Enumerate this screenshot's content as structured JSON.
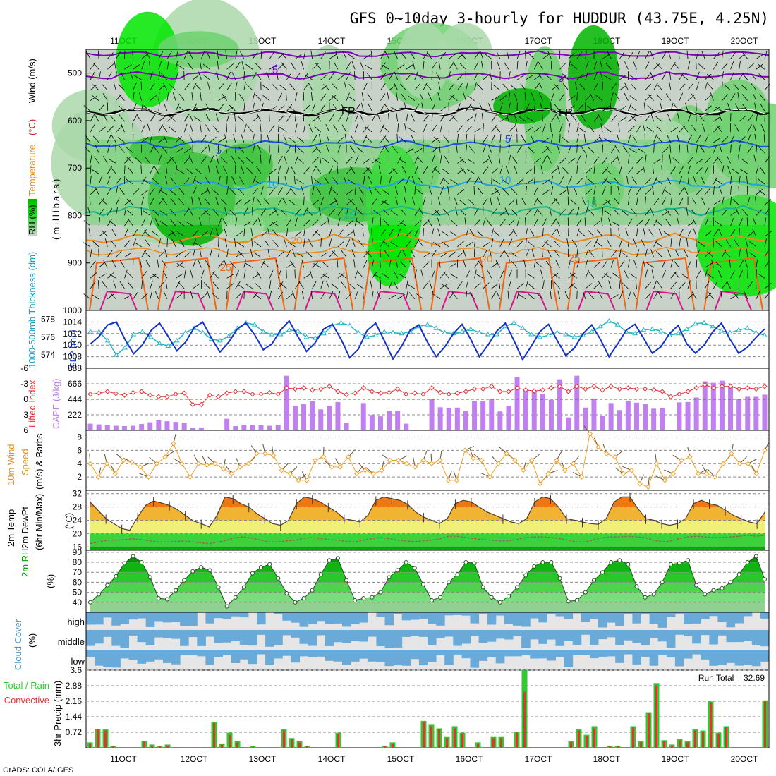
{
  "title": "GFS 0~10day 3-hourly for HUDDUR (43.75E, 4.25N)",
  "credit": "GrADS: COLA/IGES",
  "dates": [
    "11OCT",
    "12OCT",
    "13OCT",
    "14OCT",
    "15OCT",
    "16OCT",
    "17OCT",
    "18OCT",
    "19OCT",
    "20OCT"
  ],
  "colors": {
    "green_dark": "#00b400",
    "green_bright": "#00e600",
    "green_mid": "#6ed26e",
    "green_light": "#aad8aa",
    "gray": "#c8d2c8",
    "purple": "#8000c0",
    "blue": "#1e50dc",
    "cyan": "#1ea0e6",
    "teal": "#14b48c",
    "orange": "#e68c1e",
    "darkorange": "#f06414",
    "magenta": "#dc148c",
    "cape": "#c080f0",
    "li": "#e63232",
    "slp": "#1432c8",
    "thick": "#28b4c8",
    "wind10": "#f0a028",
    "cloud": "#6aaad8",
    "precip_total": "#32c832",
    "precip_conv": "#e63232"
  },
  "chart_data": [
    {
      "type": "heatmap",
      "ylabel_parts": [
        "RH (%)",
        "Temperature",
        "(°C)",
        "Wind (m/s)"
      ],
      "ylabel2": "(millibars)",
      "yticks": [
        "500",
        "600",
        "700",
        "800",
        "900",
        "1000"
      ],
      "contour_labels": [
        "5",
        "5",
        "FR",
        "FR",
        "5",
        "5",
        "10",
        "10",
        "15",
        "15",
        "20",
        "20",
        "25",
        "25"
      ]
    },
    {
      "type": "line",
      "ylabel_left": "1000-500mb Thickness (dm)",
      "ylabel_right": "SLP (mb)",
      "yticks_left": [
        "578",
        "576",
        "574"
      ],
      "yticks_right": [
        "1014",
        "1012",
        "1010",
        "1008"
      ],
      "series": [
        {
          "name": "SLP",
          "values": [
            1010.2,
            1011.5,
            1013.5,
            1014.0,
            1011.0,
            1008.5,
            1010.0,
            1012.5,
            1013.8,
            1011.5,
            1009.0,
            1010.5,
            1013.0,
            1014.0,
            1011.2,
            1008.8,
            1010.5,
            1012.8,
            1013.8,
            1011.8,
            1009.2,
            1010.2,
            1012.6,
            1014.2,
            1011.5,
            1008.9,
            1010.4,
            1012.8,
            1013.6,
            1011.0,
            1007.8,
            1009.3,
            1012.5,
            1013.8,
            1010.8,
            1007.6,
            1009.8,
            1012.6,
            1013.5,
            1010.5,
            1008.0,
            1009.7,
            1012.0,
            1013.6,
            1011.0,
            1008.0,
            1010.0,
            1012.4,
            1013.8,
            1010.8,
            1007.5,
            1009.8,
            1012.3,
            1013.6,
            1010.8,
            1008.2,
            1009.5,
            1012.0,
            1013.5,
            1011.0,
            1008.0,
            1010.2,
            1012.6,
            1013.6,
            1011.2,
            1008.6,
            1009.7,
            1012.0,
            1013.4,
            1010.2,
            1008.6,
            1010.0,
            1012.3,
            1013.8,
            1011.0,
            1008.6,
            1009.6,
            1011.3,
            1012.8
          ]
        },
        {
          "name": "Thickness",
          "values": [
            576.6,
            576.6,
            575.6,
            574.0,
            574.8,
            576.3,
            576.6,
            576.0,
            575.3,
            575.0,
            575.6,
            576.5,
            577.0,
            576.5,
            575.8,
            575.6,
            576.1,
            577.0,
            577.6,
            577.4,
            576.6,
            576.3,
            576.3,
            576.8,
            576.7,
            576.0,
            575.9,
            576.4,
            577.3,
            577.6,
            577.3,
            576.5,
            576.0,
            576.2,
            576.6,
            576.5,
            576.4,
            576.6,
            577.2,
            577.4,
            577.0,
            576.5,
            576.4,
            576.6,
            576.9,
            576.5,
            576.3,
            576.3,
            577.2,
            577.6,
            577.0,
            576.3,
            576.0,
            576.2,
            576.5,
            576.3,
            576.0,
            576.2,
            576.6,
            577.2,
            577.8,
            577.4,
            576.6,
            576.4,
            576.8,
            576.9,
            576.7,
            576.2,
            576.4,
            576.9,
            577.5,
            577.6,
            577.2,
            576.7,
            576.5,
            576.8,
            577.0,
            576.5,
            576.2
          ]
        }
      ]
    },
    {
      "type": "bar",
      "ylabel_left": "Lifted Index",
      "ylabel_right": "CAPE (J/kg)",
      "yticks_left": [
        "-6",
        "-3",
        "0",
        "3",
        "6"
      ],
      "yticks_right": [
        "888",
        "666",
        "444",
        "222"
      ],
      "series": [
        {
          "name": "CAPE",
          "values": [
            95,
            85,
            75,
            65,
            60,
            65,
            90,
            115,
            150,
            130,
            120,
            105,
            35,
            40,
            10,
            0,
            165,
            60,
            75,
            75,
            75,
            65,
            80,
            780,
            350,
            375,
            415,
            300,
            350,
            405,
            110,
            0,
            390,
            220,
            200,
            280,
            280,
            95,
            0,
            0,
            445,
            330,
            320,
            325,
            280,
            415,
            415,
            455,
            270,
            345,
            760,
            595,
            560,
            520,
            435,
            730,
            185,
            780,
            325,
            455,
            210,
            390,
            290,
            425,
            395,
            375,
            310,
            320,
            10,
            400,
            405,
            470,
            700,
            680,
            710,
            630,
            450,
            480,
            480,
            510
          ]
        },
        {
          "name": "Lifted Index",
          "values": [
            -1.0,
            -1.2,
            -1.5,
            -1.1,
            -0.8,
            -1.3,
            -1.5,
            -0.8,
            -0.5,
            -0.5,
            -1.0,
            -1.2,
            1.0,
            1.0,
            -0.8,
            -0.5,
            -1.2,
            -1.5,
            -1.5,
            -1.0,
            -1.0,
            -1.3,
            -1.0,
            -2.2,
            -2.0,
            -2.2,
            -1.8,
            -2.0,
            -2.5,
            -1.5,
            -0.9,
            -1.2,
            -2.2,
            -1.5,
            -1.2,
            -1.3,
            -2.0,
            -1.0,
            -1.2,
            -1.0,
            -2.2,
            -1.3,
            -1.0,
            -1.2,
            -1.5,
            -2.0,
            -2.0,
            -2.5,
            -1.5,
            -1.5,
            -2.2,
            -1.8,
            -1.6,
            -1.8,
            -2.2,
            -2.5,
            -1.5,
            -2.5,
            -2.0,
            -2.5,
            -1.8,
            -2.5,
            -2.0,
            -2.2,
            -2.0,
            -2.0,
            -1.8,
            -1.5,
            -0.5,
            -1.0,
            -1.5,
            -2.2,
            -2.8,
            -2.2,
            -2.5,
            -2.5,
            -2.0,
            -2.2,
            -2.0,
            -2.5
          ]
        }
      ]
    },
    {
      "type": "line",
      "ylabel": "10m Wind Speed & Barbs (m/s)",
      "ylabel_parts": [
        "10m Wind",
        "Speed",
        "(m/s) & Barbs"
      ],
      "yticks": [
        "8",
        "6",
        "4",
        "2"
      ],
      "series": [
        {
          "name": "Speed",
          "values": [
            4.0,
            2.0,
            4.0,
            2.5,
            4.5,
            4.2,
            3.5,
            2.0,
            4.0,
            5.0,
            7.0,
            4.0,
            2.0,
            4.0,
            3.8,
            4.0,
            3.2,
            2.5,
            3.5,
            4.0,
            5.5,
            5.5,
            5.2,
            3.0,
            2.5,
            1.5,
            1.5,
            4.5,
            5.0,
            3.5,
            3.5,
            5.0,
            2.5,
            3.0,
            2.5,
            3.0,
            4.5,
            4.5,
            4.0,
            3.5,
            4.5,
            4.0,
            4.5,
            1.5,
            1.5,
            6.0,
            4.8,
            4.5,
            2.0,
            4.0,
            5.5,
            4.5,
            3.0,
            4.5,
            1.0,
            2.5,
            4.5,
            3.0,
            4.0,
            2.0,
            8.5,
            6.5,
            5.5,
            5.0,
            2.5,
            3.0,
            1.0,
            0.5,
            4.0,
            1.5,
            2.5,
            4.5,
            5.0,
            2.5,
            2.5,
            2.0,
            4.0,
            5.5,
            4.0,
            4.0,
            2.5,
            6.0
          ]
        }
      ]
    },
    {
      "type": "area",
      "ylabel_parts": [
        "2m Temp",
        "2m DewPt",
        "(6hr Min/Max)"
      ],
      "yunit": "(°C)",
      "yticks": [
        "32",
        "28",
        "24",
        "20",
        "16"
      ],
      "series": [
        {
          "name": "2m Temp",
          "values": [
            29.5,
            27.0,
            24.5,
            23.0,
            21.5,
            21.0,
            25.0,
            28.5,
            29.8,
            29.2,
            28.5,
            27.2,
            25.5,
            23.8,
            23.0,
            22.0,
            25.5,
            31.0,
            30.5,
            29.0,
            28.0,
            26.0,
            24.5,
            23.0,
            22.5,
            24.0,
            29.0,
            31.0,
            30.5,
            29.5,
            28.0,
            26.5,
            24.5,
            24.0,
            23.5,
            25.5,
            30.0,
            31.0,
            30.5,
            30.0,
            28.8,
            26.5,
            25.0,
            24.0,
            23.0,
            24.5,
            29.0,
            30.0,
            29.5,
            28.0,
            26.5,
            25.5,
            24.5,
            23.5,
            23.0,
            24.5,
            29.5,
            31.0,
            30.5,
            28.0,
            24.5,
            24.0,
            23.5,
            23.0,
            22.8,
            24.5,
            29.5,
            31.0,
            31.0,
            27.5,
            24.5,
            24.0,
            23.0,
            22.5,
            23.0,
            24.5,
            29.0,
            30.0,
            29.0,
            28.5,
            27.0,
            25.5,
            24.5,
            23.5,
            23.0,
            26.5
          ]
        },
        {
          "name": "2m DewPt",
          "values": [
            17.0,
            17.5,
            18.0,
            18.0,
            18.2,
            18.5,
            18.2,
            17.8,
            17.5,
            17.5,
            17.6,
            17.8,
            17.5,
            17.2,
            17.0,
            17.5,
            18.0,
            18.8,
            19.0,
            18.6,
            18.0,
            17.5,
            17.5,
            17.8,
            18.0,
            18.6,
            18.8,
            18.5,
            18.2,
            18.0,
            17.6,
            17.5,
            18.0,
            18.5,
            18.8,
            18.5,
            18.0,
            17.8,
            17.6,
            17.8,
            18.0,
            18.5,
            19.2,
            19.2,
            18.8,
            18.5,
            18.2,
            18.0,
            17.8,
            17.8,
            18.2,
            18.8,
            19.0,
            19.0,
            18.8,
            18.5,
            18.0,
            17.5,
            17.5,
            18.2,
            18.8,
            19.0,
            19.0,
            19.2,
            19.0,
            18.8,
            18.0,
            17.5,
            17.8,
            18.5,
            19.0,
            19.2,
            19.0,
            18.8,
            18.8,
            19.0,
            19.2,
            19.5,
            19.2,
            19.5
          ]
        }
      ]
    },
    {
      "type": "area",
      "ylabel": "2m RH",
      "yunit": "(%)",
      "yticks": [
        "90",
        "80",
        "70",
        "60",
        "50",
        "40"
      ],
      "series": [
        {
          "name": "2m RH",
          "values": [
            40,
            48,
            57,
            66,
            79,
            86,
            80,
            65,
            44,
            43,
            52,
            62,
            71,
            75,
            72,
            55,
            36,
            45,
            55,
            69,
            75,
            78,
            64,
            49,
            40,
            44,
            52,
            68,
            82,
            84,
            62,
            42,
            44,
            45,
            50,
            65,
            72,
            80,
            74,
            58,
            42,
            45,
            60,
            68,
            80,
            79,
            55,
            45,
            40,
            46,
            55,
            67,
            76,
            80,
            80,
            64,
            41,
            42,
            50,
            62,
            70,
            80,
            82,
            78,
            56,
            45,
            48,
            60,
            78,
            79,
            82,
            57,
            48,
            52,
            54,
            60,
            68,
            80,
            86,
            63
          ]
        }
      ]
    },
    {
      "type": "heatmap",
      "ylabel": "Cloud Cover (%)",
      "ylabel_parts": [
        "Cloud Cover",
        "(%)"
      ],
      "levels": [
        "high",
        "middle",
        "low"
      ]
    },
    {
      "type": "bar",
      "ylabel_parts": [
        "Total / Rain",
        "Convective"
      ],
      "ylabel": "3hr Precip (mm)",
      "yticks": [
        "3.6",
        "2.88",
        "2.16",
        "1.44",
        "0.72"
      ],
      "run_total": "Run Total = 32.69",
      "series": [
        {
          "name": "Total",
          "values": [
            0.25,
            0.88,
            0.85,
            0.1,
            0,
            0,
            0,
            0.3,
            0.15,
            0.1,
            0.15,
            0,
            0,
            0,
            0,
            0,
            1.2,
            0.2,
            0.7,
            0.3,
            0,
            0.1,
            0,
            0,
            0,
            0.85,
            0.45,
            0.3,
            0.1,
            0,
            0,
            0,
            0.7,
            0,
            0,
            0,
            0,
            0,
            0.1,
            0.25,
            0,
            0,
            0,
            1.25,
            1.1,
            0.9,
            0.5,
            1.0,
            0.7,
            0,
            0.25,
            0,
            0.5,
            0.5,
            0,
            0.75,
            3.6,
            0,
            0,
            0,
            0,
            0,
            0.3,
            0.85,
            0.6,
            1.0,
            0,
            0.1,
            0.1,
            0,
            1.0,
            0.3,
            1.65,
            3.0,
            0.35,
            0.15,
            0.4,
            0.3,
            0.85,
            0.8,
            2.15,
            0.7,
            1.0,
            0,
            0,
            0,
            0,
            2.2
          ]
        },
        {
          "name": "Convective",
          "values": [
            0.2,
            0.85,
            0.8,
            0.08,
            0,
            0,
            0,
            0.28,
            0.1,
            0.08,
            0.1,
            0,
            0,
            0,
            0,
            0,
            1.15,
            0.15,
            0.6,
            0.25,
            0,
            0.05,
            0,
            0,
            0,
            0.8,
            0.4,
            0.25,
            0.08,
            0,
            0,
            0,
            0.65,
            0,
            0,
            0,
            0,
            0,
            0.08,
            0.2,
            0,
            0,
            0,
            1.2,
            1.0,
            0.85,
            0.45,
            0.9,
            0.65,
            0,
            0.2,
            0,
            0.45,
            0.45,
            0,
            0.7,
            2.6,
            0,
            0,
            0,
            0,
            0,
            0.25,
            0.8,
            0.55,
            0.9,
            0,
            0.08,
            0.08,
            0,
            0.95,
            0.25,
            1.6,
            2.9,
            0.3,
            0.1,
            0.35,
            0.25,
            0.8,
            0.75,
            2.1,
            0.65,
            0.95,
            0,
            0,
            0,
            0,
            2.15
          ]
        }
      ]
    }
  ]
}
